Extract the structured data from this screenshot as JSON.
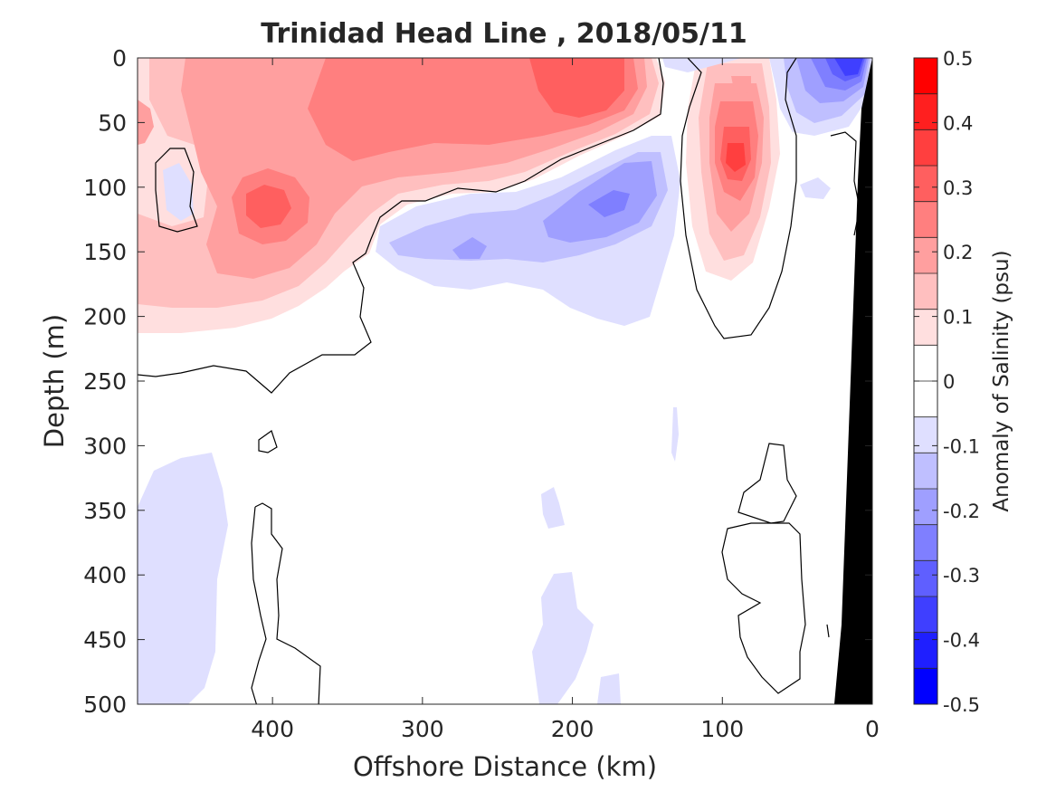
{
  "chart_data": {
    "type": "heatmap",
    "title": "Trinidad Head Line , 2018/05/11",
    "xlabel": "Offshore Distance (km)",
    "ylabel": "Depth (m)",
    "colorbar_label": "Anomaly of Salinity (psu)",
    "xlim": [
      490,
      0
    ],
    "ylim": [
      0,
      500
    ],
    "x_ticks": [
      "400",
      "300",
      "200",
      "100",
      "0"
    ],
    "x_tick_values": [
      400,
      300,
      200,
      100,
      0
    ],
    "y_ticks": [
      "0",
      "50",
      "100",
      "150",
      "200",
      "250",
      "300",
      "350",
      "400",
      "450",
      "500"
    ],
    "y_tick_values": [
      0,
      50,
      100,
      150,
      200,
      250,
      300,
      350,
      400,
      450,
      500
    ],
    "colorbar_range": [
      -0.5,
      0.5
    ],
    "colorbar_ticks": [
      "0.5",
      "0.4",
      "0.3",
      "0.2",
      "0.1",
      "0",
      "-0.1",
      "-0.2",
      "-0.3",
      "-0.4",
      "-0.5"
    ],
    "colorbar_tick_values": [
      0.5,
      0.4,
      0.3,
      0.2,
      0.1,
      0,
      -0.1,
      -0.2,
      -0.3,
      -0.4,
      -0.5
    ],
    "colorbar_colors": [
      "#0000ff",
      "#1f1fff",
      "#3f3fff",
      "#5f5fff",
      "#7f7fff",
      "#9f9fff",
      "#bfbfff",
      "#dfdfff",
      "#ffffff",
      "#ffffff",
      "#ffdfdf",
      "#ffbfbf",
      "#ff9f9f",
      "#ff7f7f",
      "#ff5f5f",
      "#ff3f3f",
      "#ff1f1f",
      "#ff0000"
    ],
    "land_color": "#000000",
    "anomaly_features": [
      {
        "sign": "positive",
        "x_center": 250,
        "depth_center": 40,
        "peak": 0.3
      },
      {
        "sign": "positive",
        "x_center": 403,
        "depth_center": 118,
        "peak": 0.3
      },
      {
        "sign": "positive",
        "x_center": 92,
        "depth_center": 80,
        "peak": 0.35
      },
      {
        "sign": "negative",
        "x_center": 190,
        "depth_center": 130,
        "peak": -0.2
      },
      {
        "sign": "negative",
        "x_center": 30,
        "depth_center": 15,
        "peak": -0.45
      },
      {
        "sign": "negative",
        "x_center": 465,
        "depth_center": 400,
        "peak": -0.1
      },
      {
        "sign": "negative",
        "x_center": 215,
        "depth_center": 460,
        "peak": -0.1
      }
    ]
  }
}
